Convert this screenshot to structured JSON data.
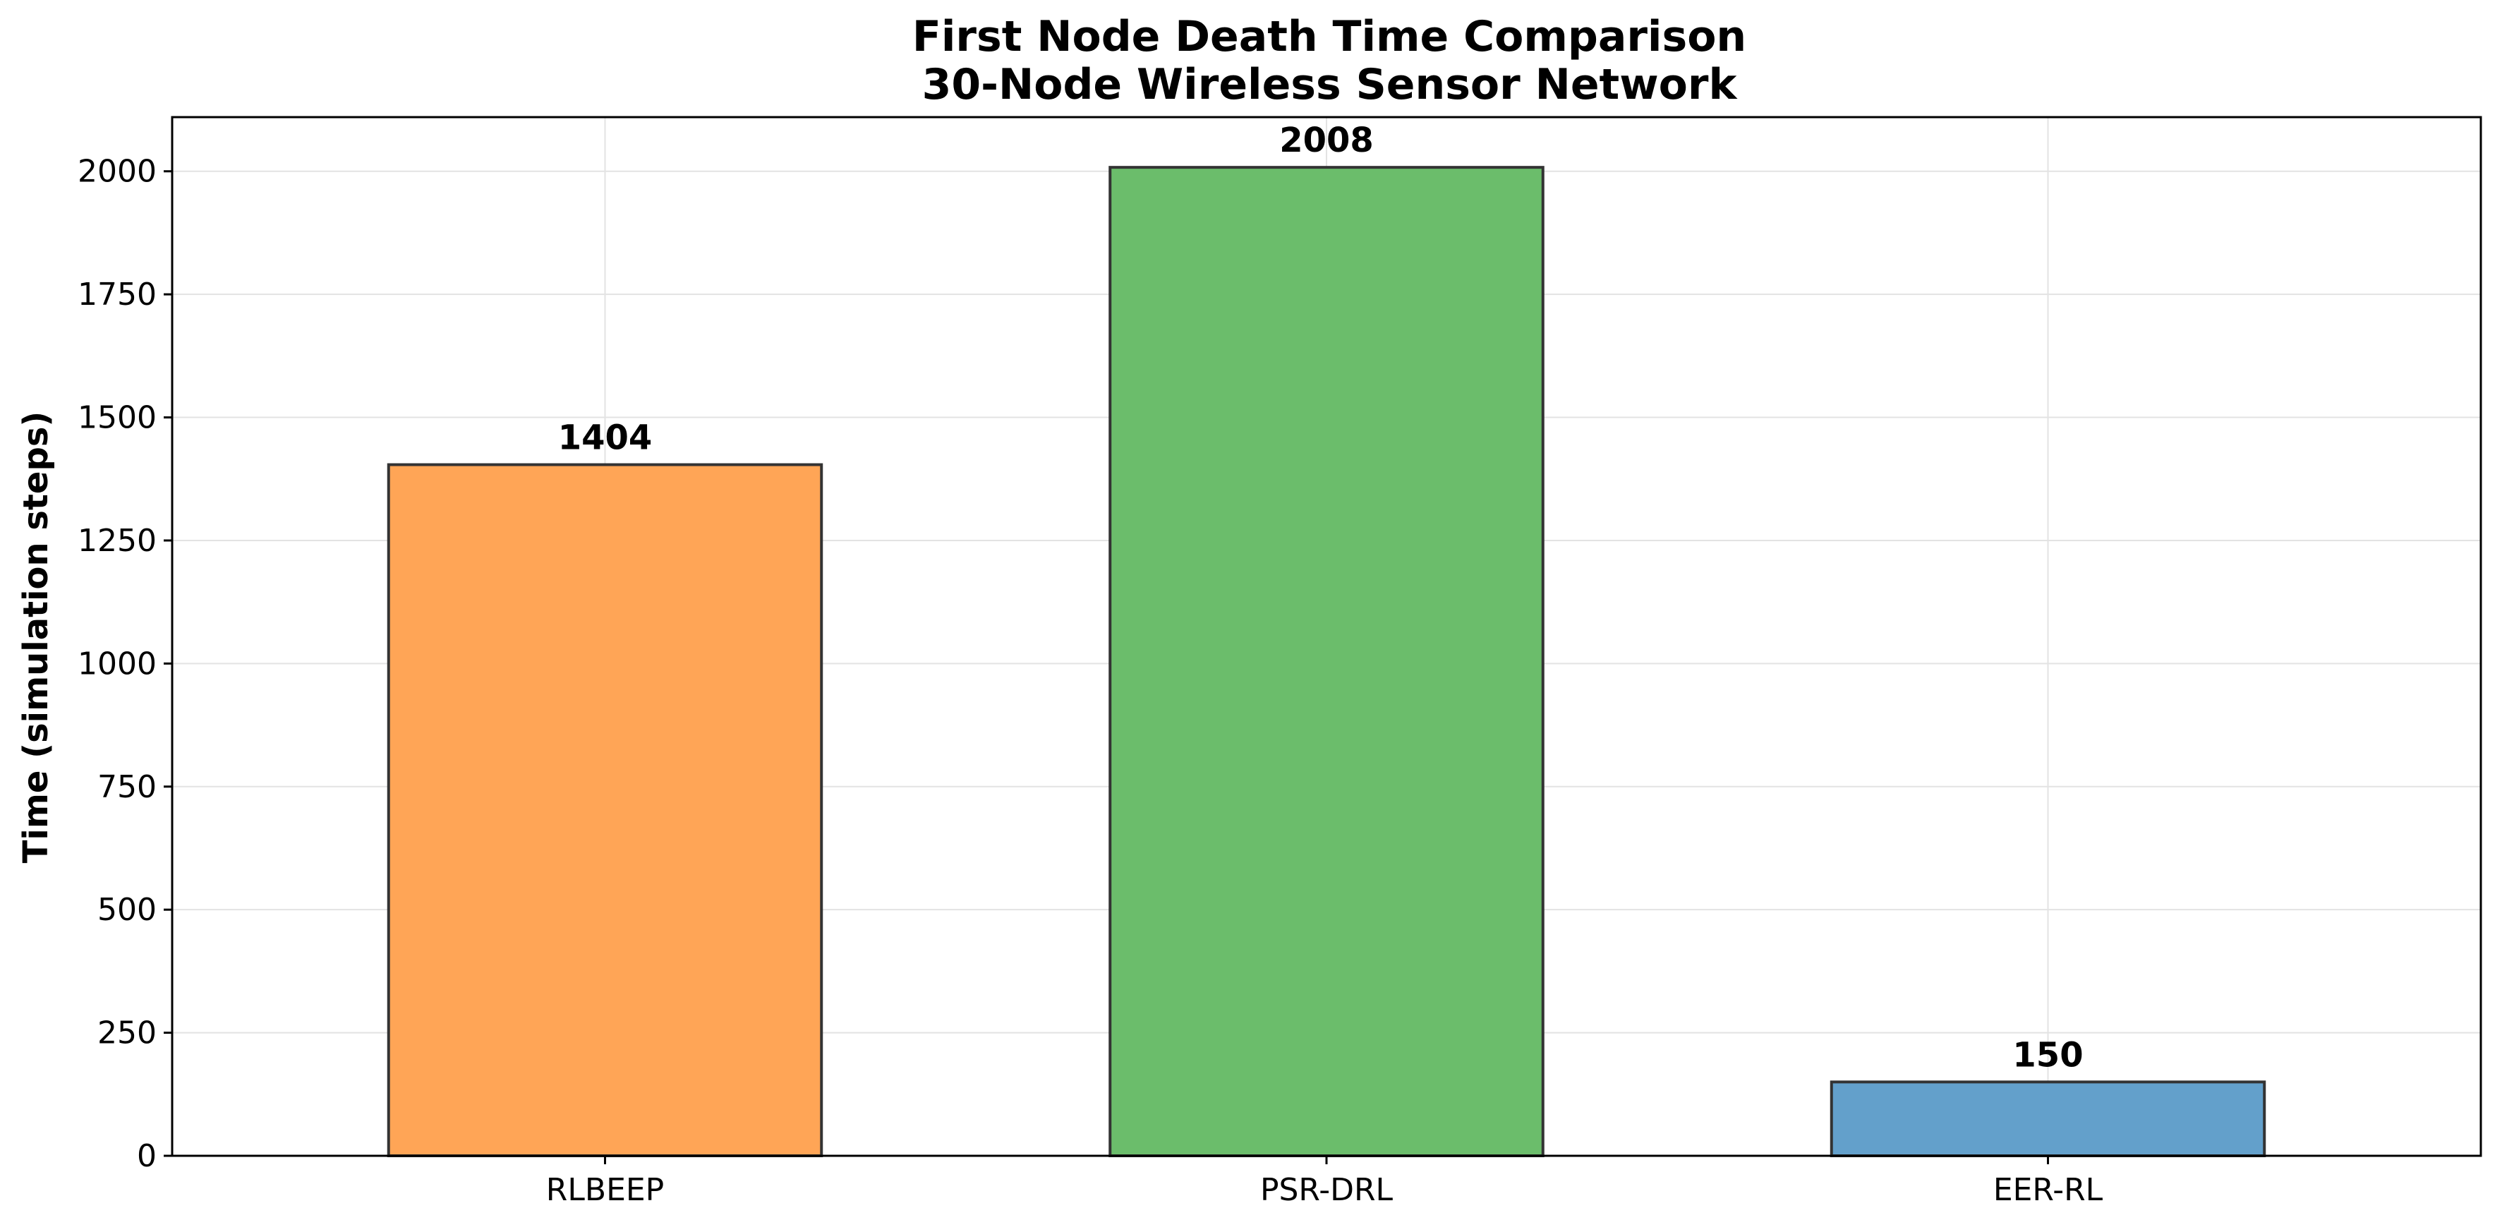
{
  "chart_data": {
    "type": "bar",
    "title": "First Node Death Time Comparison",
    "subtitle": "30-Node Wireless Sensor Network",
    "xlabel": "",
    "ylabel": "Time (simulation steps)",
    "categories": [
      "RLBEEP",
      "PSR-DRL",
      "EER-RL"
    ],
    "values": [
      1404,
      2008,
      150
    ],
    "value_labels": [
      "1404",
      "2008",
      "150"
    ],
    "colors": [
      "#ffa556",
      "#6bbd6b",
      "#63a0cb"
    ],
    "edge_color": "#333333",
    "ylim": [
      0,
      2110
    ],
    "yticks": [
      0,
      250,
      500,
      750,
      1000,
      1250,
      1500,
      1750,
      2000
    ],
    "grid": true
  }
}
